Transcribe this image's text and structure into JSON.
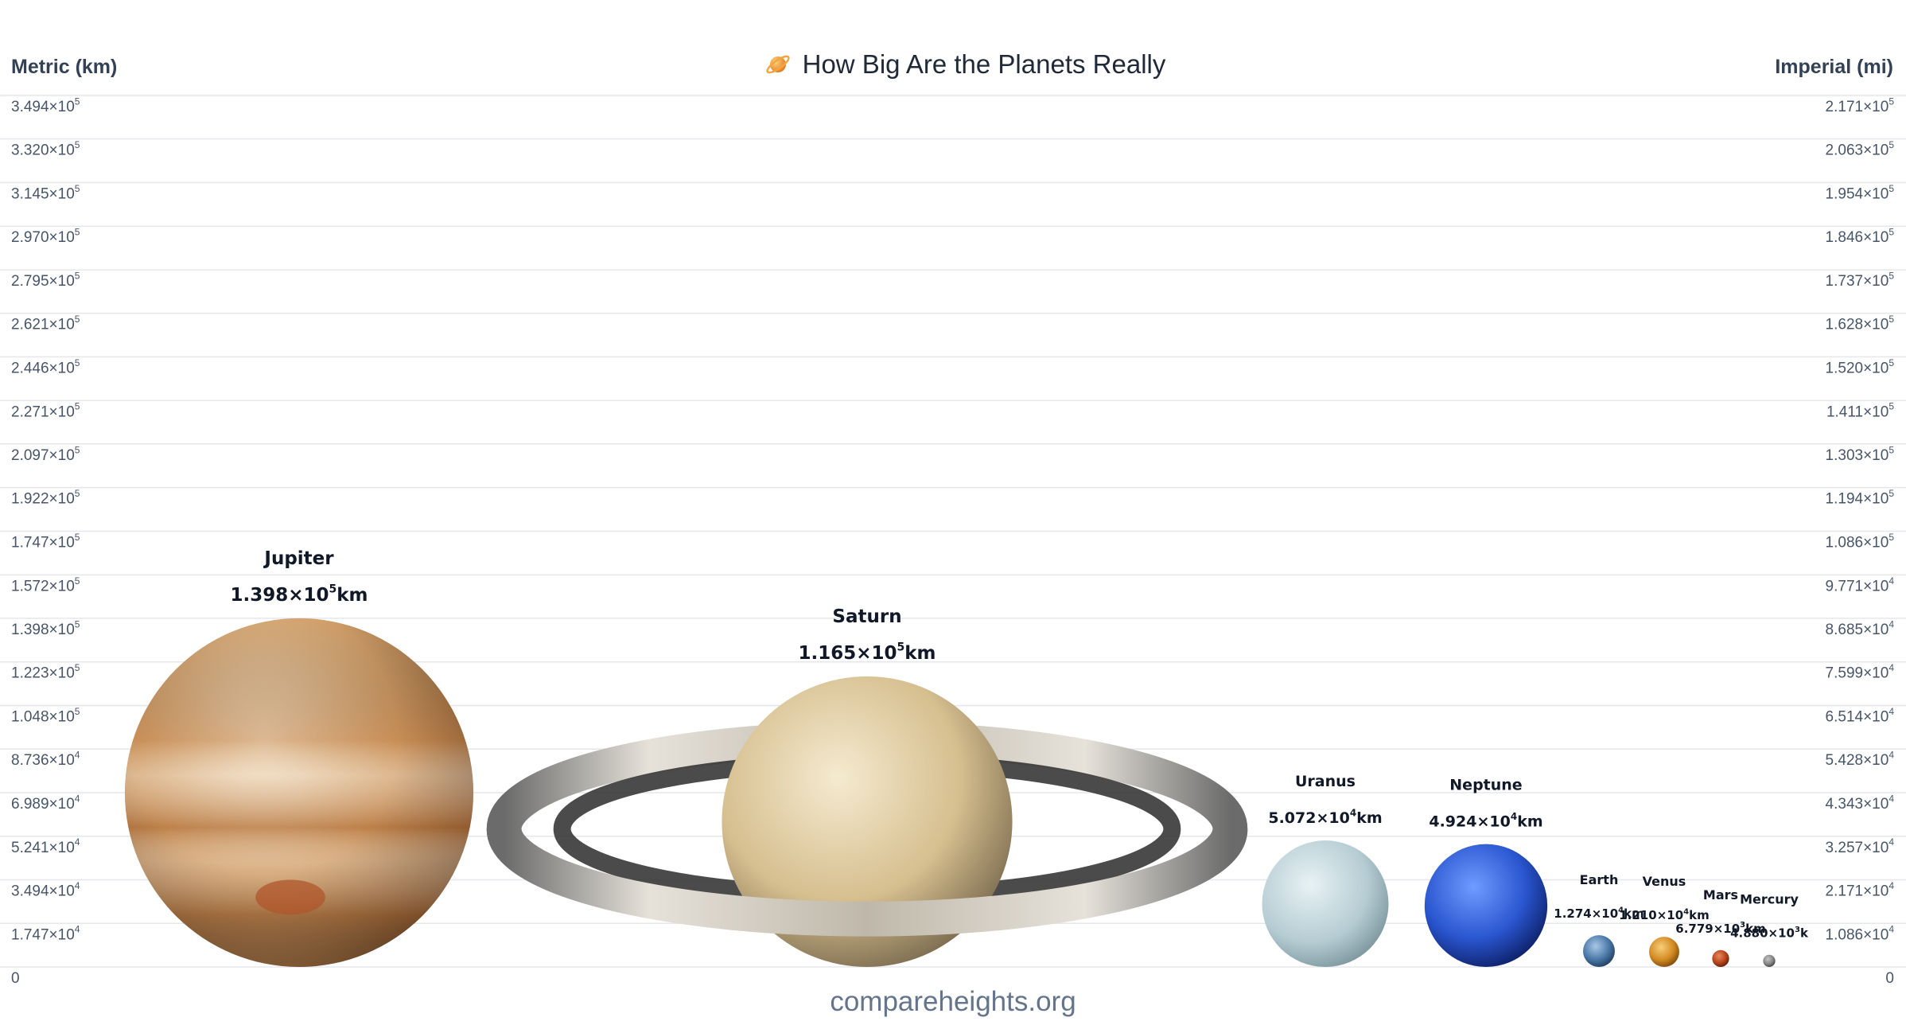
{
  "header": {
    "metric_label": "Metric (km)",
    "imperial_label": "Imperial (mi)",
    "title": "How Big Are the Planets Really",
    "title_icon": "ringed-planet-icon"
  },
  "footer": {
    "credit": "compareheights.org"
  },
  "colors": {
    "gridline": "#e5e7eb",
    "tick_text": "#475569",
    "jupiter": "#c9925c",
    "saturn": "#d9c39a",
    "uranus": "#b7d0d8",
    "neptune": "#2f5fd6",
    "earth": "#3f6f9e",
    "venus": "#d9962d",
    "mars": "#b9461f",
    "mercury": "#8a8a8a"
  },
  "chart_data": {
    "type": "bar",
    "title": "How Big Are the Planets Really",
    "ylabel_left": "Metric (km)",
    "ylabel_right": "Imperial (mi)",
    "ylim": [
      0,
      349400
    ],
    "grid": true,
    "left_ticks": [
      {
        "value": 0,
        "mant": "0",
        "exp": ""
      },
      {
        "value": 17470,
        "mant": "1.747×10",
        "exp": "4"
      },
      {
        "value": 34940,
        "mant": "3.494×10",
        "exp": "4"
      },
      {
        "value": 52410,
        "mant": "5.241×10",
        "exp": "4"
      },
      {
        "value": 69890,
        "mant": "6.989×10",
        "exp": "4"
      },
      {
        "value": 87360,
        "mant": "8.736×10",
        "exp": "4"
      },
      {
        "value": 104800,
        "mant": "1.048×10",
        "exp": "5"
      },
      {
        "value": 122300,
        "mant": "1.223×10",
        "exp": "5"
      },
      {
        "value": 139800,
        "mant": "1.398×10",
        "exp": "5"
      },
      {
        "value": 157200,
        "mant": "1.572×10",
        "exp": "5"
      },
      {
        "value": 174700,
        "mant": "1.747×10",
        "exp": "5"
      },
      {
        "value": 192200,
        "mant": "1.922×10",
        "exp": "5"
      },
      {
        "value": 209700,
        "mant": "2.097×10",
        "exp": "5"
      },
      {
        "value": 227100,
        "mant": "2.271×10",
        "exp": "5"
      },
      {
        "value": 244600,
        "mant": "2.446×10",
        "exp": "5"
      },
      {
        "value": 262100,
        "mant": "2.621×10",
        "exp": "5"
      },
      {
        "value": 279500,
        "mant": "2.795×10",
        "exp": "5"
      },
      {
        "value": 297000,
        "mant": "2.970×10",
        "exp": "5"
      },
      {
        "value": 314500,
        "mant": "3.145×10",
        "exp": "5"
      },
      {
        "value": 332000,
        "mant": "3.320×10",
        "exp": "5"
      },
      {
        "value": 349400,
        "mant": "3.494×10",
        "exp": "5"
      }
    ],
    "right_ticks": [
      {
        "mant": "0",
        "exp": ""
      },
      {
        "mant": "1.086×10",
        "exp": "4"
      },
      {
        "mant": "2.171×10",
        "exp": "4"
      },
      {
        "mant": "3.257×10",
        "exp": "4"
      },
      {
        "mant": "4.343×10",
        "exp": "4"
      },
      {
        "mant": "5.428×10",
        "exp": "4"
      },
      {
        "mant": "6.514×10",
        "exp": "4"
      },
      {
        "mant": "7.599×10",
        "exp": "4"
      },
      {
        "mant": "8.685×10",
        "exp": "4"
      },
      {
        "mant": "9.771×10",
        "exp": "4"
      },
      {
        "mant": "1.086×10",
        "exp": "5"
      },
      {
        "mant": "1.194×10",
        "exp": "5"
      },
      {
        "mant": "1.303×10",
        "exp": "5"
      },
      {
        "mant": "1.411×10",
        "exp": "5"
      },
      {
        "mant": "1.520×10",
        "exp": "5"
      },
      {
        "mant": "1.628×10",
        "exp": "5"
      },
      {
        "mant": "1.737×10",
        "exp": "5"
      },
      {
        "mant": "1.846×10",
        "exp": "5"
      },
      {
        "mant": "1.954×10",
        "exp": "5"
      },
      {
        "mant": "2.063×10",
        "exp": "5"
      },
      {
        "mant": "2.171×10",
        "exp": "5"
      }
    ],
    "categories": [
      "Jupiter",
      "Saturn",
      "Uranus",
      "Neptune",
      "Earth",
      "Venus",
      "Mars",
      "Mercury"
    ],
    "values": [
      139800,
      116500,
      50720,
      49240,
      12740,
      12100,
      6779,
      4880
    ],
    "planets": [
      {
        "name": "Jupiter",
        "diameter_km": 139800,
        "label_mant": "1.398×10",
        "label_exp": "5",
        "label_unit": "km",
        "color_key": "jupiter",
        "rings": false
      },
      {
        "name": "Saturn",
        "diameter_km": 116500,
        "label_mant": "1.165×10",
        "label_exp": "5",
        "label_unit": "km",
        "color_key": "saturn",
        "rings": true
      },
      {
        "name": "Uranus",
        "diameter_km": 50720,
        "label_mant": "5.072×10",
        "label_exp": "4",
        "label_unit": "km",
        "color_key": "uranus",
        "rings": false
      },
      {
        "name": "Neptune",
        "diameter_km": 49240,
        "label_mant": "4.924×10",
        "label_exp": "4",
        "label_unit": "km",
        "color_key": "neptune",
        "rings": false
      },
      {
        "name": "Earth",
        "diameter_km": 12740,
        "label_mant": "1.274×10",
        "label_exp": "4",
        "label_unit": "km",
        "color_key": "earth",
        "rings": false
      },
      {
        "name": "Venus",
        "diameter_km": 12100,
        "label_mant": "1.210×10",
        "label_exp": "4",
        "label_unit": "km",
        "color_key": "venus",
        "rings": false
      },
      {
        "name": "Mars",
        "diameter_km": 6779,
        "label_mant": "6.779×10",
        "label_exp": "3",
        "label_unit": "km",
        "color_key": "mars",
        "rings": false
      },
      {
        "name": "Mercury",
        "diameter_km": 4880,
        "label_mant": "4.880×10",
        "label_exp": "3",
        "label_unit": "k",
        "color_key": "mercury",
        "rings": false
      }
    ]
  }
}
